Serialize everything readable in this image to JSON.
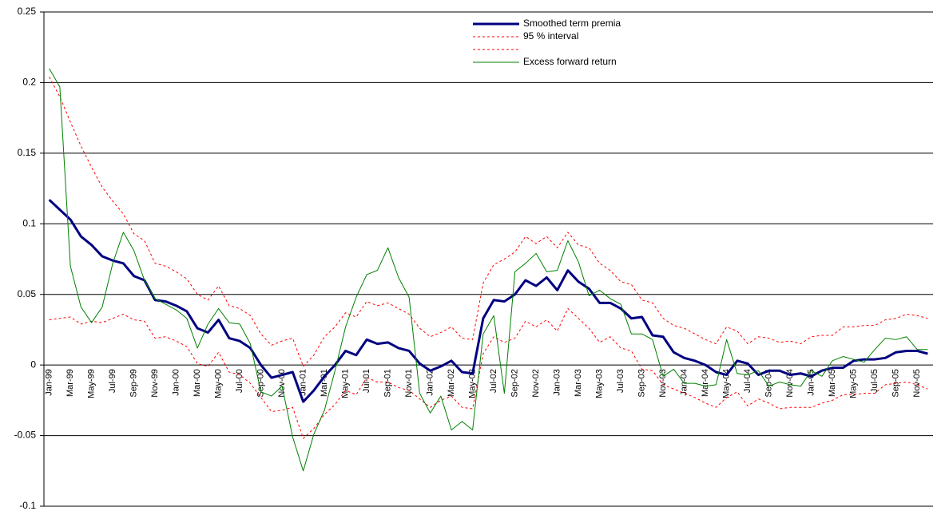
{
  "chart_data": {
    "type": "line",
    "categories": [
      "Jan-99",
      null,
      "Mar-99",
      null,
      "May-99",
      null,
      "Jul-99",
      null,
      "Sep-99",
      null,
      "Nov-99",
      null,
      "Jan-00",
      null,
      "Mar-00",
      null,
      "May-00",
      null,
      "Jul-00",
      null,
      "Sep-00",
      null,
      "Nov-00",
      null,
      "Jan-01",
      null,
      "Mar-01",
      null,
      "May-01",
      null,
      "Jul-01",
      null,
      "Sep-01",
      null,
      "Nov-01",
      null,
      "Jan-02",
      null,
      "Mar-02",
      null,
      "May-02",
      null,
      "Jul-02",
      null,
      "Sep-02",
      null,
      "Nov-02",
      null,
      "Jan-03",
      null,
      "Mar-03",
      null,
      "May-03",
      null,
      "Jul-03",
      null,
      "Sep-03",
      null,
      "Nov-03",
      null,
      "Jan-04",
      null,
      "Mar-04",
      null,
      "May-04",
      null,
      "Jul-04",
      null,
      "Sep-04",
      null,
      "Nov-04",
      null,
      "Jan-05",
      null,
      "Mar-05",
      null,
      "May-05",
      null,
      "Jul-05",
      null,
      "Sep-05",
      null,
      "Nov-05",
      null
    ],
    "series": [
      {
        "name": "Smoothed term premia",
        "color": "#000080",
        "width": 3,
        "dash": false,
        "values": [
          0.117,
          0.11,
          0.103,
          0.091,
          0.085,
          0.077,
          0.074,
          0.072,
          0.063,
          0.06,
          0.046,
          0.045,
          0.042,
          0.038,
          0.026,
          0.023,
          0.032,
          0.019,
          0.017,
          0.012,
          0.0,
          -0.009,
          -0.007,
          -0.005,
          -0.026,
          -0.018,
          -0.008,
          0.0,
          0.01,
          0.007,
          0.018,
          0.015,
          0.016,
          0.012,
          0.01,
          0.001,
          -0.004,
          -0.001,
          0.003,
          -0.005,
          -0.006,
          0.033,
          0.046,
          0.045,
          0.05,
          0.06,
          0.056,
          0.062,
          0.053,
          0.067,
          0.059,
          0.054,
          0.044,
          0.044,
          0.04,
          0.033,
          0.034,
          0.021,
          0.02,
          0.009,
          0.005,
          0.003,
          0.0,
          -0.005,
          -0.007,
          0.003,
          0.001,
          -0.007,
          -0.004,
          -0.004,
          -0.007,
          -0.006,
          -0.008,
          -0.004,
          -0.002,
          -0.002,
          0.003,
          0.004,
          0.004,
          0.005,
          0.009,
          0.01,
          0.01,
          0.008
        ]
      },
      {
        "name": "95 % interval",
        "color": "#ff0000",
        "width": 1,
        "dash": true,
        "values": [
          0.204,
          0.19,
          0.172,
          0.155,
          0.14,
          0.126,
          0.116,
          0.107,
          0.093,
          0.088,
          0.072,
          0.07,
          0.066,
          0.061,
          0.05,
          0.046,
          0.056,
          0.042,
          0.04,
          0.035,
          0.022,
          0.014,
          0.017,
          0.019,
          -0.001,
          0.007,
          0.02,
          0.027,
          0.037,
          0.034,
          0.045,
          0.042,
          0.044,
          0.04,
          0.036,
          0.026,
          0.02,
          0.023,
          0.027,
          0.019,
          0.018,
          0.058,
          0.071,
          0.075,
          0.08,
          0.091,
          0.086,
          0.091,
          0.083,
          0.094,
          0.085,
          0.083,
          0.072,
          0.067,
          0.059,
          0.057,
          0.046,
          0.044,
          0.033,
          0.028,
          0.026,
          0.022,
          0.018,
          0.015,
          0.027,
          0.024,
          0.015,
          0.02,
          0.019,
          0.016,
          0.017,
          0.015,
          0.02,
          0.021,
          0.021,
          0.027,
          0.027,
          0.028,
          0.028,
          0.032,
          0.033,
          0.036,
          0.035,
          0.033
        ]
      },
      {
        "color": "#ff0000",
        "width": 1,
        "dash": true,
        "values": [
          0.032,
          0.033,
          0.034,
          0.029,
          0.031,
          0.03,
          0.033,
          0.036,
          0.032,
          0.031,
          0.019,
          0.02,
          0.017,
          0.013,
          0.001,
          -0.001,
          0.009,
          -0.005,
          -0.007,
          -0.013,
          -0.023,
          -0.033,
          -0.032,
          -0.03,
          -0.052,
          -0.045,
          -0.035,
          -0.028,
          -0.018,
          -0.021,
          -0.009,
          -0.012,
          -0.012,
          -0.016,
          -0.018,
          -0.024,
          -0.03,
          -0.025,
          -0.022,
          -0.03,
          -0.031,
          0.008,
          0.02,
          0.016,
          0.019,
          0.031,
          0.027,
          0.032,
          0.024,
          0.04,
          0.033,
          0.026,
          0.016,
          0.02,
          0.012,
          0.01,
          -0.003,
          -0.004,
          -0.014,
          -0.017,
          -0.02,
          -0.023,
          -0.027,
          -0.03,
          -0.023,
          -0.019,
          -0.029,
          -0.024,
          -0.027,
          -0.031,
          -0.03,
          -0.03,
          -0.03,
          -0.027,
          -0.025,
          -0.021,
          -0.021,
          -0.02,
          -0.02,
          -0.014,
          -0.013,
          -0.012,
          -0.014,
          -0.017
        ]
      },
      {
        "name": "Excess forward return",
        "color": "#008000",
        "width": 1,
        "dash": false,
        "values": [
          0.21,
          0.197,
          0.07,
          0.041,
          0.03,
          0.041,
          0.072,
          0.094,
          0.081,
          0.06,
          0.047,
          0.043,
          0.039,
          0.033,
          0.012,
          0.029,
          0.04,
          0.03,
          0.029,
          0.015,
          -0.019,
          -0.022,
          -0.015,
          -0.051,
          -0.075,
          -0.049,
          -0.032,
          -0.004,
          0.027,
          0.048,
          0.064,
          0.067,
          0.083,
          0.062,
          0.048,
          -0.02,
          -0.034,
          -0.022,
          -0.046,
          -0.04,
          -0.046,
          0.022,
          0.035,
          -0.02,
          0.066,
          0.072,
          0.079,
          0.066,
          0.067,
          0.088,
          0.073,
          0.049,
          0.053,
          0.047,
          0.043,
          0.022,
          0.022,
          0.018,
          -0.008,
          -0.003,
          -0.013,
          -0.013,
          -0.015,
          -0.014,
          0.018,
          -0.006,
          -0.007,
          -0.004,
          -0.015,
          -0.012,
          -0.014,
          -0.015,
          -0.004,
          -0.008,
          0.003,
          0.006,
          0.004,
          0.002,
          0.011,
          0.019,
          0.018,
          0.02,
          0.011,
          0.011
        ]
      }
    ],
    "ylim": [
      -0.1,
      0.25
    ],
    "yticks": [
      -0.1,
      -0.05,
      0,
      0.05,
      0.1,
      0.15,
      0.2,
      0.25
    ],
    "grid": true,
    "legend": "top-right"
  }
}
